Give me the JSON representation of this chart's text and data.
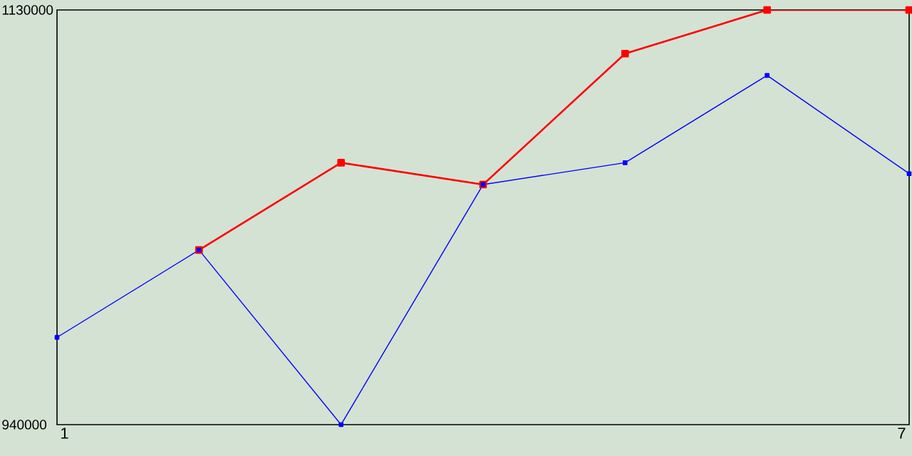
{
  "chart_data": {
    "type": "line",
    "x": [
      1,
      2,
      3,
      4,
      5,
      6,
      7
    ],
    "xlim": [
      1,
      7
    ],
    "xticks": [
      1,
      7
    ],
    "ylim": [
      940000,
      1130000
    ],
    "yticks": [
      940000,
      1130000
    ],
    "marker": "square",
    "series": [
      {
        "color": "#ff0000",
        "values": [
          null,
          1020000,
          1060000,
          1050000,
          1110000,
          1130000,
          1130000
        ]
      },
      {
        "color": "#0000ff",
        "values": [
          980000,
          1020000,
          940000,
          1050000,
          1060000,
          1100000,
          1055000
        ]
      }
    ]
  }
}
